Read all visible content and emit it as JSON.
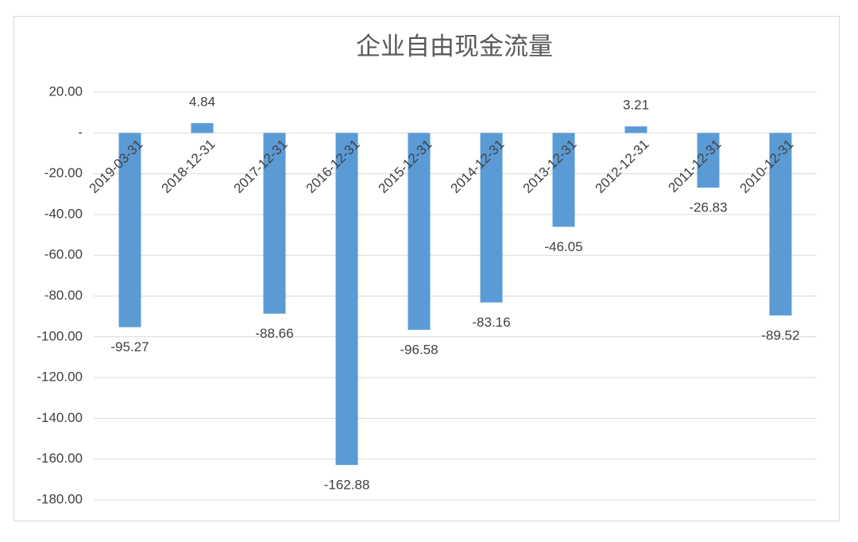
{
  "chart_data": {
    "type": "bar",
    "title": "企业自由现金流量",
    "categories": [
      "2019-03-31",
      "2018-12-31",
      "2017-12-31",
      "2016-12-31",
      "2015-12-31",
      "2014-12-31",
      "2013-12-31",
      "2012-12-31",
      "2011-12-31",
      "2010-12-31"
    ],
    "values": [
      -95.27,
      4.84,
      -88.66,
      -162.88,
      -96.58,
      -83.16,
      -46.05,
      3.21,
      -26.83,
      -89.52
    ],
    "color": "#5b9bd5",
    "ylim": [
      -180,
      20
    ],
    "yticks": [
      {
        "value": 20,
        "label": "20.00"
      },
      {
        "value": 0,
        "label": "-"
      },
      {
        "value": -20,
        "label": "-20.00"
      },
      {
        "value": -40,
        "label": "-40.00"
      },
      {
        "value": -60,
        "label": "-60.00"
      },
      {
        "value": -80,
        "label": "-80.00"
      },
      {
        "value": -100,
        "label": "-100.00"
      },
      {
        "value": -120,
        "label": "-120.00"
      },
      {
        "value": -140,
        "label": "-140.00"
      },
      {
        "value": -160,
        "label": "-160.00"
      },
      {
        "value": -180,
        "label": "-180.00"
      }
    ],
    "grid": true
  }
}
